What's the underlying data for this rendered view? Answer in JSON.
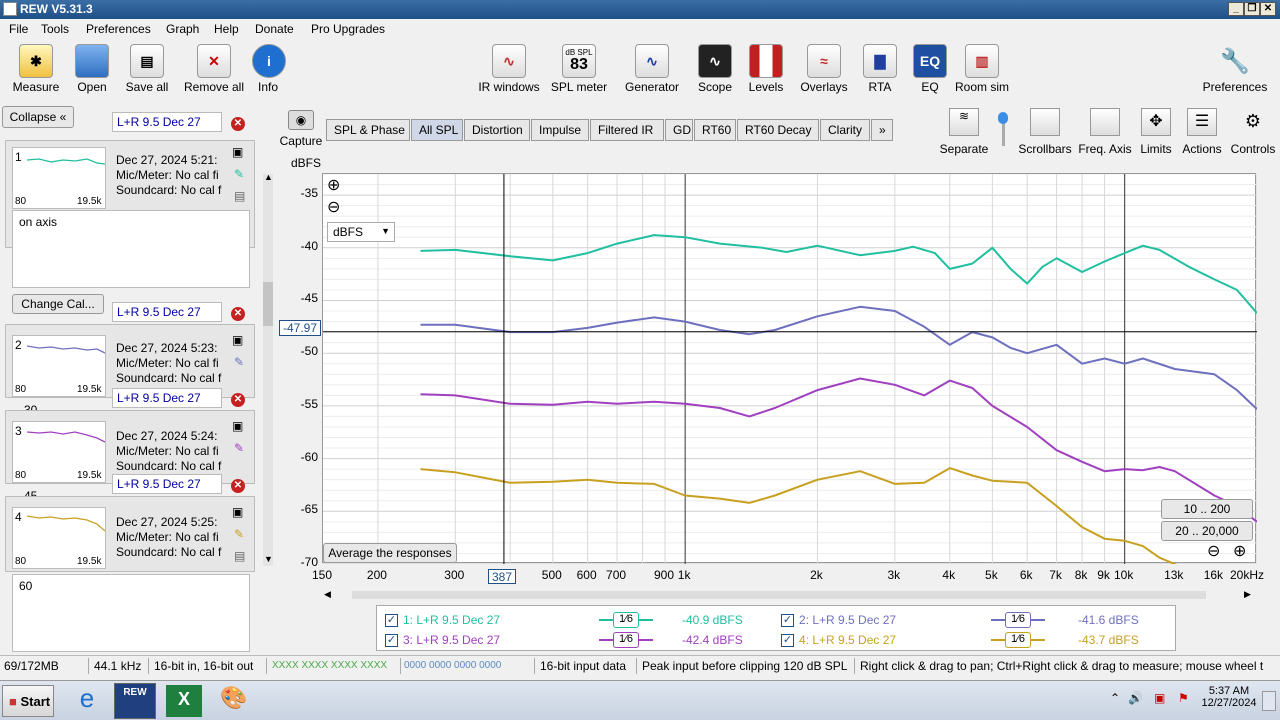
{
  "window": {
    "title": "REW V5.31.3",
    "controls": [
      "_",
      "❐",
      "✕"
    ]
  },
  "menu": [
    "File",
    "Tools",
    "Preferences",
    "Graph",
    "Help",
    "Donate",
    "Pro Upgrades"
  ],
  "toolbar_left": [
    {
      "label": "Measure",
      "icon": "measure-icon"
    },
    {
      "label": "Open",
      "icon": "open-folder-icon"
    },
    {
      "label": "Save all",
      "icon": "save-icon"
    },
    {
      "label": "Remove all",
      "icon": "remove-all-icon"
    },
    {
      "label": "Info",
      "icon": "info-icon"
    }
  ],
  "toolbar_center": [
    {
      "label": "IR windows",
      "icon": "ir-windows-icon"
    },
    {
      "label": "SPL meter",
      "icon": "spl-meter-icon",
      "badge_top": "dB SPL",
      "badge_value": "83"
    },
    {
      "label": "Generator",
      "icon": "generator-icon"
    },
    {
      "label": "Scope",
      "icon": "scope-icon"
    },
    {
      "label": "Levels",
      "icon": "levels-icon"
    },
    {
      "label": "Overlays",
      "icon": "overlays-icon"
    },
    {
      "label": "RTA",
      "icon": "rta-icon"
    },
    {
      "label": "EQ",
      "icon": "eq-icon"
    },
    {
      "label": "Room sim",
      "icon": "room-sim-icon"
    }
  ],
  "toolbar_right": {
    "label": "Preferences",
    "icon": "wrench-icon"
  },
  "panel": {
    "collapse_label": "Collapse",
    "change_cal_label": "Change Cal...",
    "measurements": [
      {
        "num": "1",
        "name": "L+R 9.5 Dec 27",
        "date": "Dec 27, 2024 5:21:",
        "mic": "Mic/Meter: No cal fi",
        "sound": "Soundcard: No cal f",
        "lo": "80",
        "hi": "19.5k",
        "color": "#1fbf9f",
        "notes": "on axis"
      },
      {
        "num": "2",
        "name": "L+R 9.5 Dec 27",
        "date": "Dec 27, 2024 5:23:",
        "mic": "Mic/Meter: No cal fi",
        "sound": "Soundcard: No cal f",
        "lo": "80",
        "hi": "19.5k",
        "color": "#6f6fbf",
        "notes": "30"
      },
      {
        "num": "3",
        "name": "L+R 9.5 Dec 27",
        "date": "Dec 27, 2024 5:24:",
        "mic": "Mic/Meter: No cal fi",
        "sound": "Soundcard: No cal f",
        "lo": "80",
        "hi": "19.5k",
        "color": "#a040c0",
        "notes": "45"
      },
      {
        "num": "4",
        "name": "L+R 9.5 Dec 27",
        "date": "Dec 27, 2024 5:25:",
        "mic": "Mic/Meter: No cal fi",
        "sound": "Soundcard: No cal f",
        "lo": "80",
        "hi": "19.5k",
        "color": "#c8a020",
        "notes": "60"
      }
    ]
  },
  "capture_label": "Capture",
  "tabs": [
    "SPL & Phase",
    "All SPL",
    "Distortion",
    "Impulse",
    "Filtered IR",
    "GD",
    "RT60",
    "RT60 Decay",
    "Clarity",
    "»"
  ],
  "selected_tab": "All SPL",
  "right_tools": [
    "Separate",
    "Scrollbars",
    "Freq. Axis",
    "Limits",
    "Actions",
    "Controls"
  ],
  "graph": {
    "y_unit": "dBFS",
    "unit_select": "dBFS",
    "cursor_readout_y": "-47.97",
    "cursor_readout_x": "387",
    "average_button": "Average the responses",
    "range_buttons": [
      "10 .. 200",
      "20 .. 20,000"
    ],
    "zoom_in": "⊕",
    "zoom_out": "⊖"
  },
  "chart_data": {
    "type": "line",
    "xlabel": "Hz",
    "ylabel": "dBFS",
    "x_scale": "log",
    "xlim": [
      150,
      20000
    ],
    "ylim": [
      -70,
      -33
    ],
    "grid": true,
    "y_ticks": [
      "-35",
      "-40",
      "-45",
      "-50",
      "-55",
      "-60",
      "-65",
      "-70"
    ],
    "x_ticks": [
      {
        "v": 150,
        "t": "150"
      },
      {
        "v": 200,
        "t": "200"
      },
      {
        "v": 300,
        "t": "300"
      },
      {
        "v": 500,
        "t": "500"
      },
      {
        "v": 600,
        "t": "600"
      },
      {
        "v": 700,
        "t": "700"
      },
      {
        "v": 900,
        "t": "900"
      },
      {
        "v": 1000,
        "t": "1k"
      },
      {
        "v": 2000,
        "t": "2k"
      },
      {
        "v": 3000,
        "t": "3k"
      },
      {
        "v": 4000,
        "t": "4k"
      },
      {
        "v": 5000,
        "t": "5k"
      },
      {
        "v": 6000,
        "t": "6k"
      },
      {
        "v": 7000,
        "t": "7k"
      },
      {
        "v": 8000,
        "t": "8k"
      },
      {
        "v": 9000,
        "t": "9k"
      },
      {
        "v": 10000,
        "t": "10k"
      },
      {
        "v": 13000,
        "t": "13k"
      },
      {
        "v": 16000,
        "t": "16k"
      },
      {
        "v": 20000,
        "t": "20kHz"
      }
    ],
    "cursor": {
      "x": 387,
      "y": -47.97
    },
    "series": [
      {
        "name": "1: L+R 9.5 Dec 27",
        "color": "#1fbf9f",
        "x": [
          250,
          300,
          400,
          500,
          600,
          700,
          850,
          1000,
          1200,
          1500,
          1700,
          2000,
          2500,
          3000,
          3300,
          3700,
          4000,
          4500,
          5000,
          5500,
          6000,
          6500,
          7000,
          8000,
          9000,
          10000,
          11000,
          12000,
          14000,
          16000,
          18000,
          20000
        ],
        "y": [
          -40.3,
          -40.2,
          -40.8,
          -41.2,
          -40.5,
          -39.6,
          -38.8,
          -39.0,
          -39.6,
          -40.0,
          -40.4,
          -39.8,
          -40.7,
          -40.3,
          -39.9,
          -40.5,
          -42.0,
          -41.5,
          -40.0,
          -42.0,
          -43.4,
          -41.8,
          -41.0,
          -42.3,
          -41.3,
          -40.5,
          -39.8,
          -40.2,
          -41.8,
          -43.0,
          -44.0,
          -46.2
        ]
      },
      {
        "name": "2: L+R 9.5 Dec 27",
        "color": "#6f6fbf",
        "x": [
          250,
          300,
          400,
          500,
          600,
          700,
          850,
          1000,
          1200,
          1400,
          1600,
          2000,
          2500,
          3000,
          3500,
          4000,
          4500,
          5000,
          5500,
          6000,
          7000,
          8000,
          9000,
          10000,
          11000,
          13000,
          16000,
          18000,
          20000
        ],
        "y": [
          -47.3,
          -47.3,
          -48.0,
          -48.0,
          -47.6,
          -47.1,
          -46.6,
          -47.0,
          -47.8,
          -48.2,
          -47.8,
          -46.5,
          -45.6,
          -46.0,
          -47.5,
          -49.2,
          -48.0,
          -48.5,
          -49.5,
          -50.0,
          -49.2,
          -51.0,
          -50.5,
          -51.0,
          -50.5,
          -51.5,
          -52.0,
          -53.5,
          -55.3
        ]
      },
      {
        "name": "3: L+R 9.5 Dec 27",
        "color": "#a040c0",
        "x": [
          250,
          300,
          400,
          500,
          600,
          700,
          850,
          1000,
          1200,
          1400,
          1600,
          2000,
          2500,
          3000,
          3500,
          4000,
          4500,
          5000,
          6000,
          7000,
          8000,
          9000,
          10000,
          11000,
          12000,
          13000,
          16000,
          18000,
          20000
        ],
        "y": [
          -53.9,
          -54.0,
          -54.8,
          -54.9,
          -54.6,
          -54.8,
          -54.6,
          -54.8,
          -55.2,
          -56.0,
          -55.2,
          -53.5,
          -52.4,
          -53.0,
          -54.0,
          -52.6,
          -53.3,
          -55.0,
          -57.0,
          -59.2,
          -60.3,
          -61.2,
          -61.0,
          -61.1,
          -60.8,
          -61.2,
          -63.5,
          -64.5,
          -66.0
        ]
      },
      {
        "name": "4: L+R 9.5 Dec 27",
        "color": "#c8a020",
        "x": [
          250,
          300,
          400,
          500,
          600,
          700,
          850,
          1000,
          1200,
          1400,
          1600,
          2000,
          2500,
          3000,
          3500,
          4000,
          4500,
          5000,
          6000,
          7000,
          8000,
          9000,
          10000,
          11000,
          12000,
          13000,
          14000,
          16000,
          18000,
          20000
        ],
        "y": [
          -61.0,
          -61.3,
          -62.3,
          -62.2,
          -62.0,
          -62.3,
          -62.4,
          -63.5,
          -63.8,
          -64.2,
          -63.5,
          -62.0,
          -61.2,
          -62.4,
          -62.3,
          -60.9,
          -61.6,
          -62.1,
          -62.3,
          -64.5,
          -66.5,
          -67.6,
          -67.8,
          -68.3,
          -69.4,
          -70.0,
          -70.5,
          -71.0,
          -71.5,
          -72.0
        ]
      }
    ]
  },
  "legend": [
    {
      "label": "1: L+R 9.5 Dec 27",
      "smooth": "1⁄6",
      "value": "-40.9 dBFS",
      "color": "#1fbf9f",
      "checked": "✓"
    },
    {
      "label": "2: L+R 9.5 Dec 27",
      "smooth": "1⁄6",
      "value": "-41.6 dBFS",
      "color": "#6f6fbf",
      "checked": "✓"
    },
    {
      "label": "3: L+R 9.5 Dec 27",
      "smooth": "1⁄6",
      "value": "-42.4 dBFS",
      "color": "#a040c0",
      "checked": "✓"
    },
    {
      "label": "4: L+R 9.5 Dec 27",
      "smooth": "1⁄6",
      "value": "-43.7 dBFS",
      "color": "#c8a020",
      "checked": "✓"
    }
  ],
  "status": {
    "memory": "69/172MB",
    "rate": "44.1 kHz",
    "bits": "16-bit in, 16-bit out",
    "green_meter": "XXXX XXXX  XXXX XXXX",
    "blue_meter": "0000 0000  0000 0000",
    "input": "16-bit input data",
    "peak": "Peak input before clipping 120 dB SPL",
    "hint": "Right click & drag to pan; Ctrl+Right click & drag to measure; mouse wheel t"
  },
  "taskbar": {
    "start": "Start",
    "time": "5:37 AM",
    "date": "12/27/2024",
    "apps": [
      "ie-icon",
      "rew-icon",
      "excel-icon",
      "paint-icon"
    ],
    "rew_label": "REW"
  }
}
